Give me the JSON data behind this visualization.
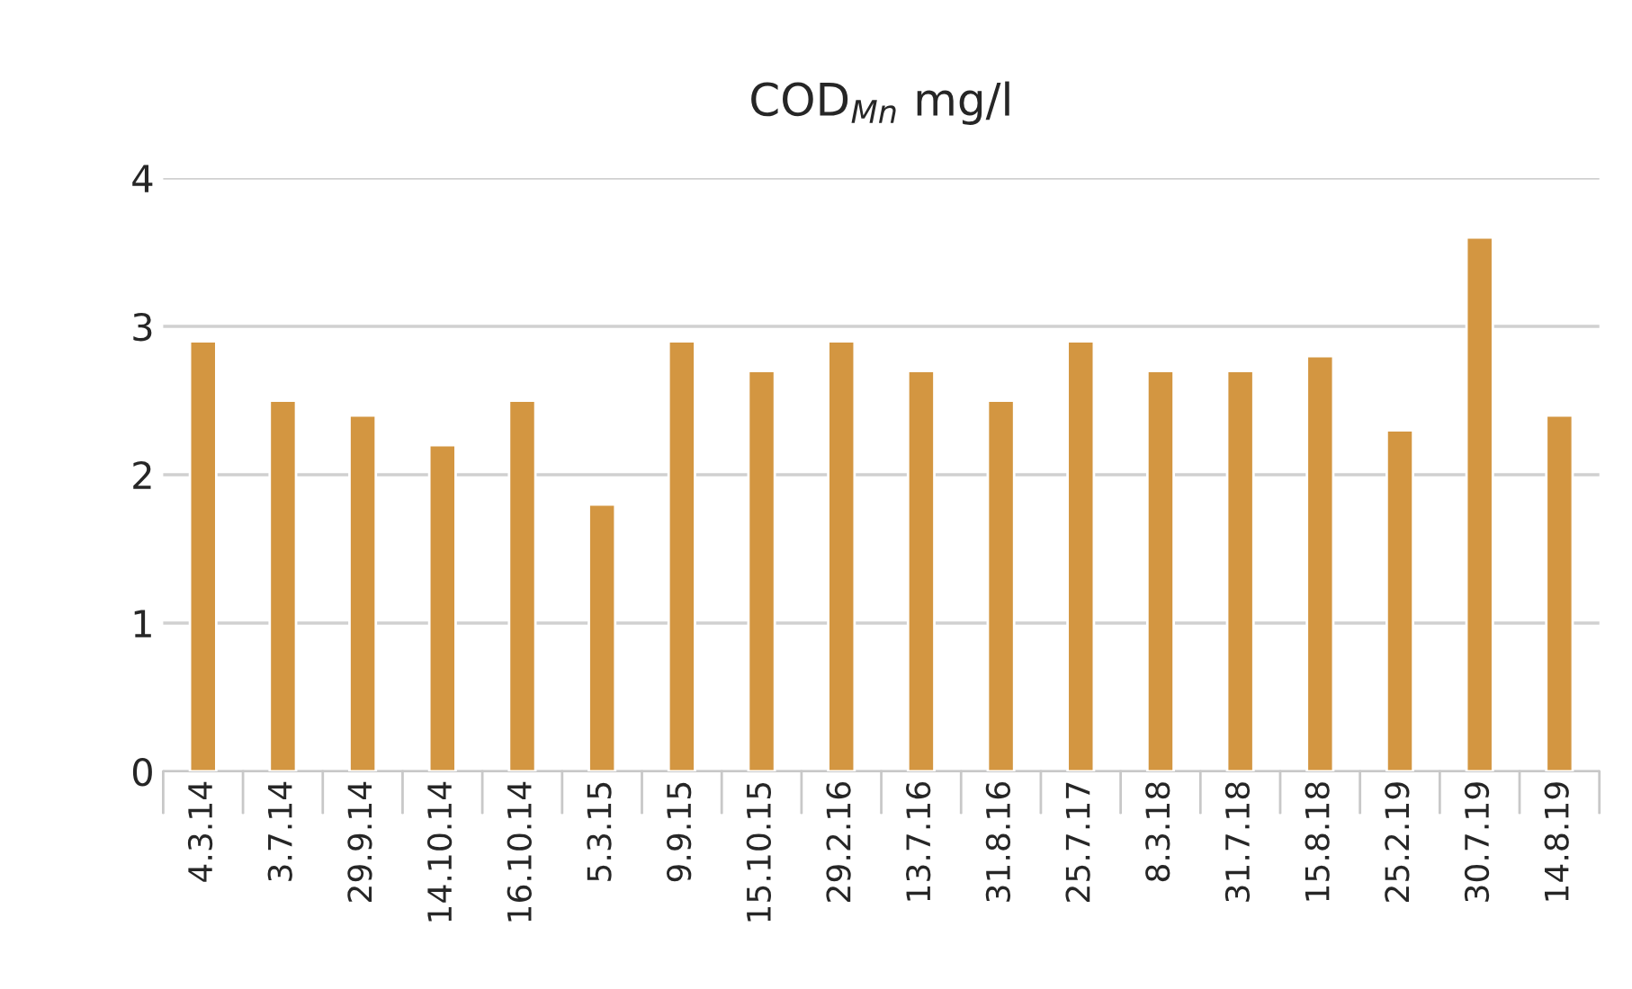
{
  "chart_data": {
    "type": "bar",
    "title": "COD$_{Mn}$ mg/l",
    "categories": [
      "4.3.14",
      "3.7.14",
      "29.9.14",
      "14.10.14",
      "16.10.14",
      "5.3.15",
      "9.9.15",
      "15.10.15",
      "29.2.16",
      "13.7.16",
      "31.8.16",
      "25.7.17",
      "8.3.18",
      "31.7.18",
      "15.8.18",
      "25.2.19",
      "30.7.19",
      "14.8.19"
    ],
    "values": [
      2.9,
      2.5,
      2.4,
      2.2,
      2.5,
      1.8,
      2.9,
      2.7,
      2.9,
      2.7,
      2.5,
      2.9,
      2.7,
      2.7,
      2.8,
      2.3,
      3.6,
      2.4
    ],
    "color": "#d39641",
    "ylim": [
      0,
      4
    ],
    "yticks": [
      0,
      1,
      2,
      3,
      4
    ],
    "grid": "y"
  }
}
